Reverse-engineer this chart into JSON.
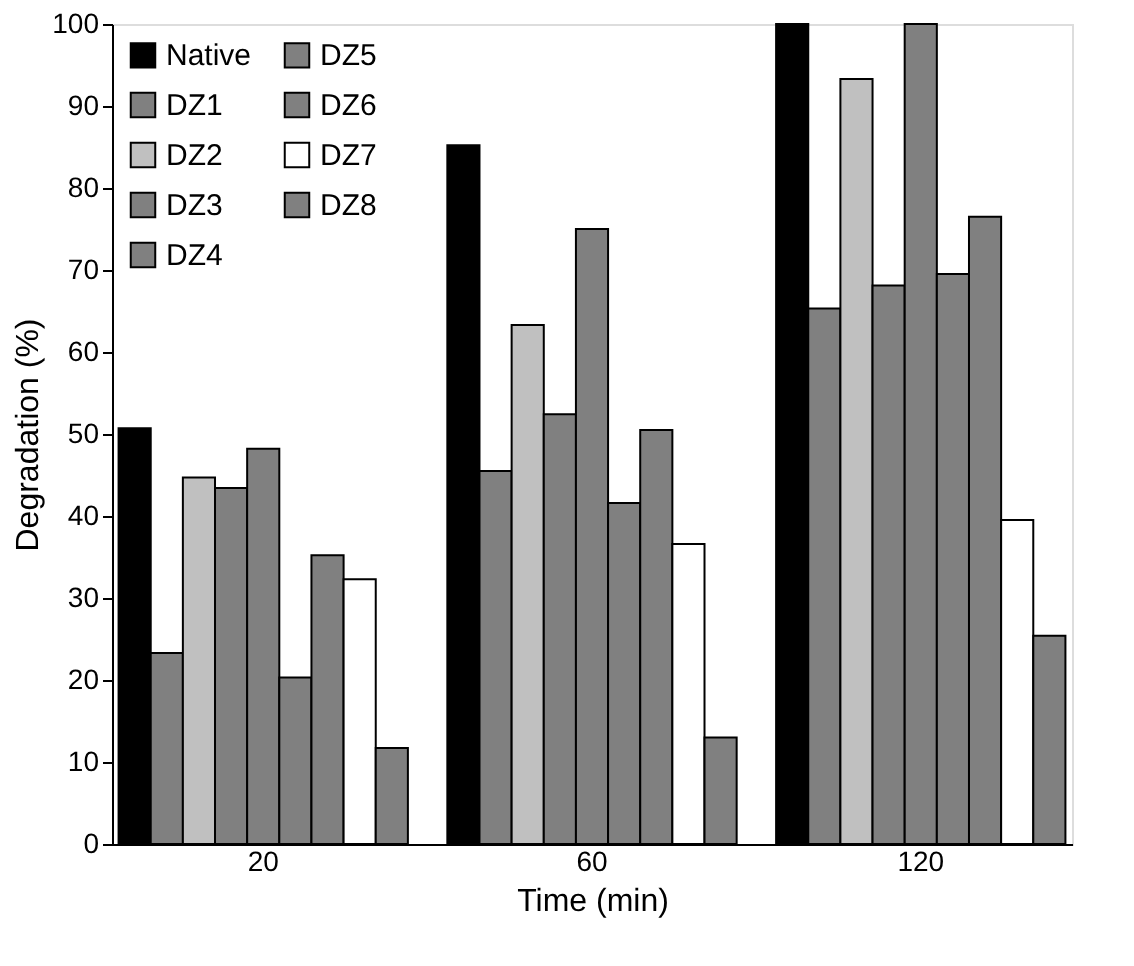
{
  "chart_data": {
    "type": "bar",
    "xlabel": "Time (min)",
    "ylabel": "Degradation (%)",
    "categories": [
      "20",
      "60",
      "120"
    ],
    "series": [
      {
        "name": "Native",
        "color": "#000000",
        "values": [
          50.7,
          85.2,
          100
        ]
      },
      {
        "name": "DZ1",
        "color": "#808080",
        "values": [
          23.3,
          45.5,
          65.3
        ]
      },
      {
        "name": "DZ2",
        "color": "#c0c0c0",
        "values": [
          44.7,
          63.3,
          93.3
        ]
      },
      {
        "name": "DZ3",
        "color": "#808080",
        "values": [
          43.4,
          52.4,
          68.1
        ]
      },
      {
        "name": "DZ4",
        "color": "#808080",
        "values": [
          48.2,
          75.0,
          100
        ]
      },
      {
        "name": "DZ5",
        "color": "#808080",
        "values": [
          20.3,
          41.6,
          69.5
        ]
      },
      {
        "name": "DZ6",
        "color": "#808080",
        "values": [
          35.2,
          50.5,
          76.5
        ]
      },
      {
        "name": "DZ7",
        "color": "#ffffff",
        "values": [
          32.3,
          36.6,
          39.5
        ]
      },
      {
        "name": "DZ8",
        "color": "#808080",
        "values": [
          11.7,
          13.0,
          25.4
        ]
      }
    ],
    "ylim": [
      0,
      100
    ],
    "yticks": [
      0,
      10,
      20,
      30,
      40,
      50,
      60,
      70,
      80,
      90,
      100
    ],
    "grid": false,
    "legend": "top left"
  }
}
